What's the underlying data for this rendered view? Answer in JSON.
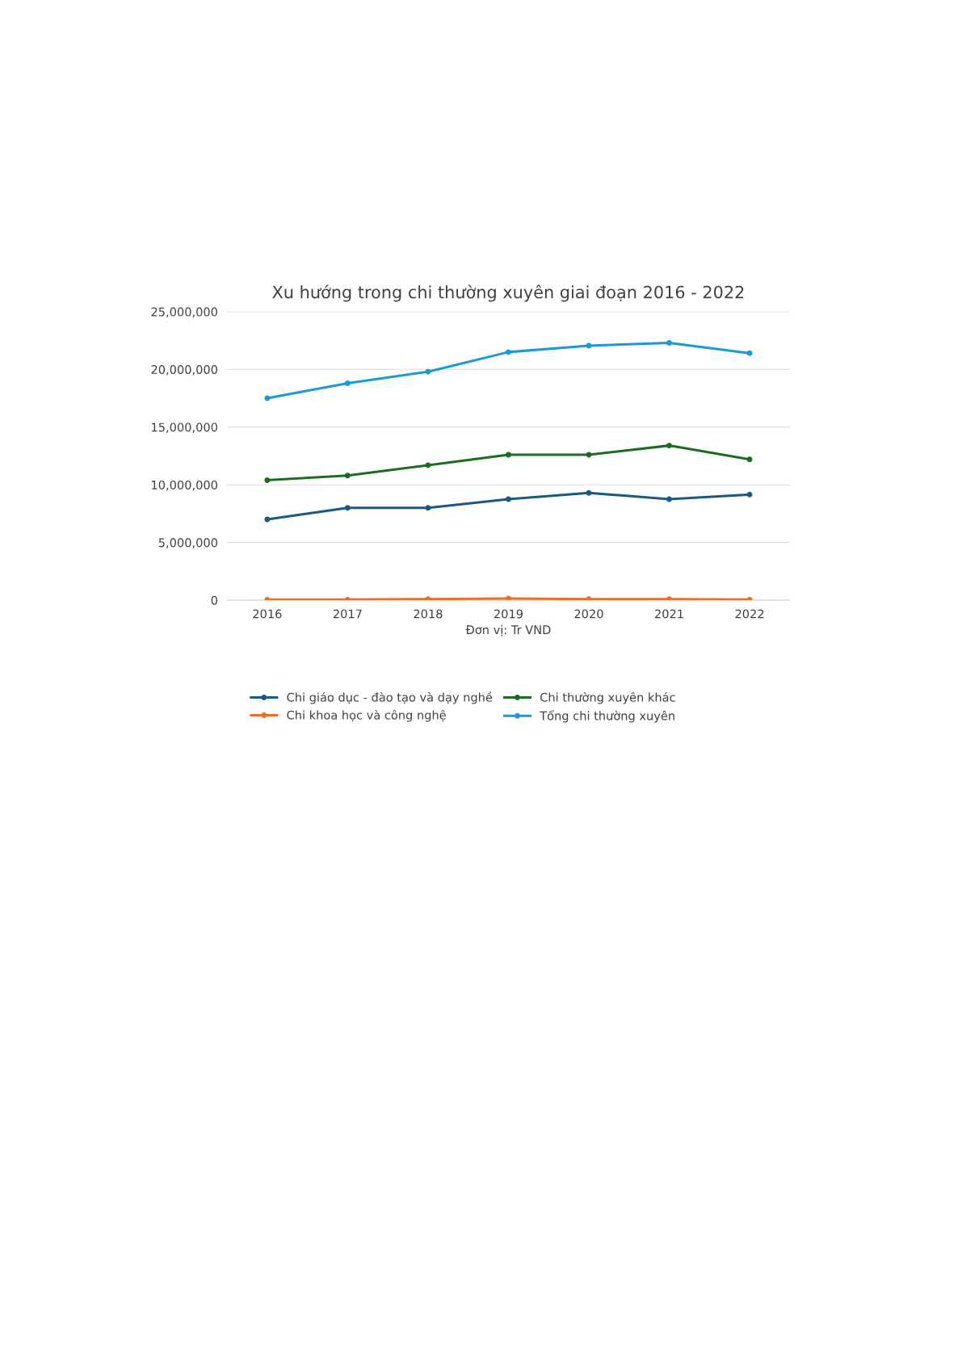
{
  "chart_data": {
    "type": "line",
    "title": "Xu hướng trong chi thường xuyên giai đoạn 2016 - 2022",
    "xlabel": "Đơn vị: Tr VND",
    "categories": [
      "2016",
      "2017",
      "2018",
      "2019",
      "2020",
      "2021",
      "2022"
    ],
    "series": [
      {
        "name": "Chi giáo dục - đào tạo và dạy nghề",
        "color": "#1b5a80",
        "values": [
          7000000,
          8000000,
          8000000,
          8750000,
          9300000,
          8750000,
          9150000
        ]
      },
      {
        "name": "Chi khoa học và công nghệ",
        "color": "#e8702a",
        "values": [
          50000,
          50000,
          100000,
          150000,
          100000,
          100000,
          50000
        ]
      },
      {
        "name": "Chi thường xuyên khác",
        "color": "#1e6b24",
        "values": [
          10400000,
          10800000,
          11700000,
          12600000,
          12600000,
          13400000,
          12200000
        ]
      },
      {
        "name": "Tổng chi thường xuyên",
        "color": "#1a9ad6",
        "values": [
          17500000,
          18800000,
          19800000,
          21500000,
          22050000,
          22300000,
          21400000
        ]
      }
    ],
    "ylim": [
      0,
      25000000
    ],
    "yticks": [
      {
        "value": 0,
        "label": "0"
      },
      {
        "value": 5000000,
        "label": "5,000,000"
      },
      {
        "value": 10000000,
        "label": "10,000,000"
      },
      {
        "value": 15000000,
        "label": "15,000,000"
      },
      {
        "value": 20000000,
        "label": "20,000,000"
      },
      {
        "value": 25000000,
        "label": "25,000,000"
      }
    ],
    "grid": "y",
    "legend": "bottom",
    "marker": "circle",
    "line_style": "solid"
  }
}
